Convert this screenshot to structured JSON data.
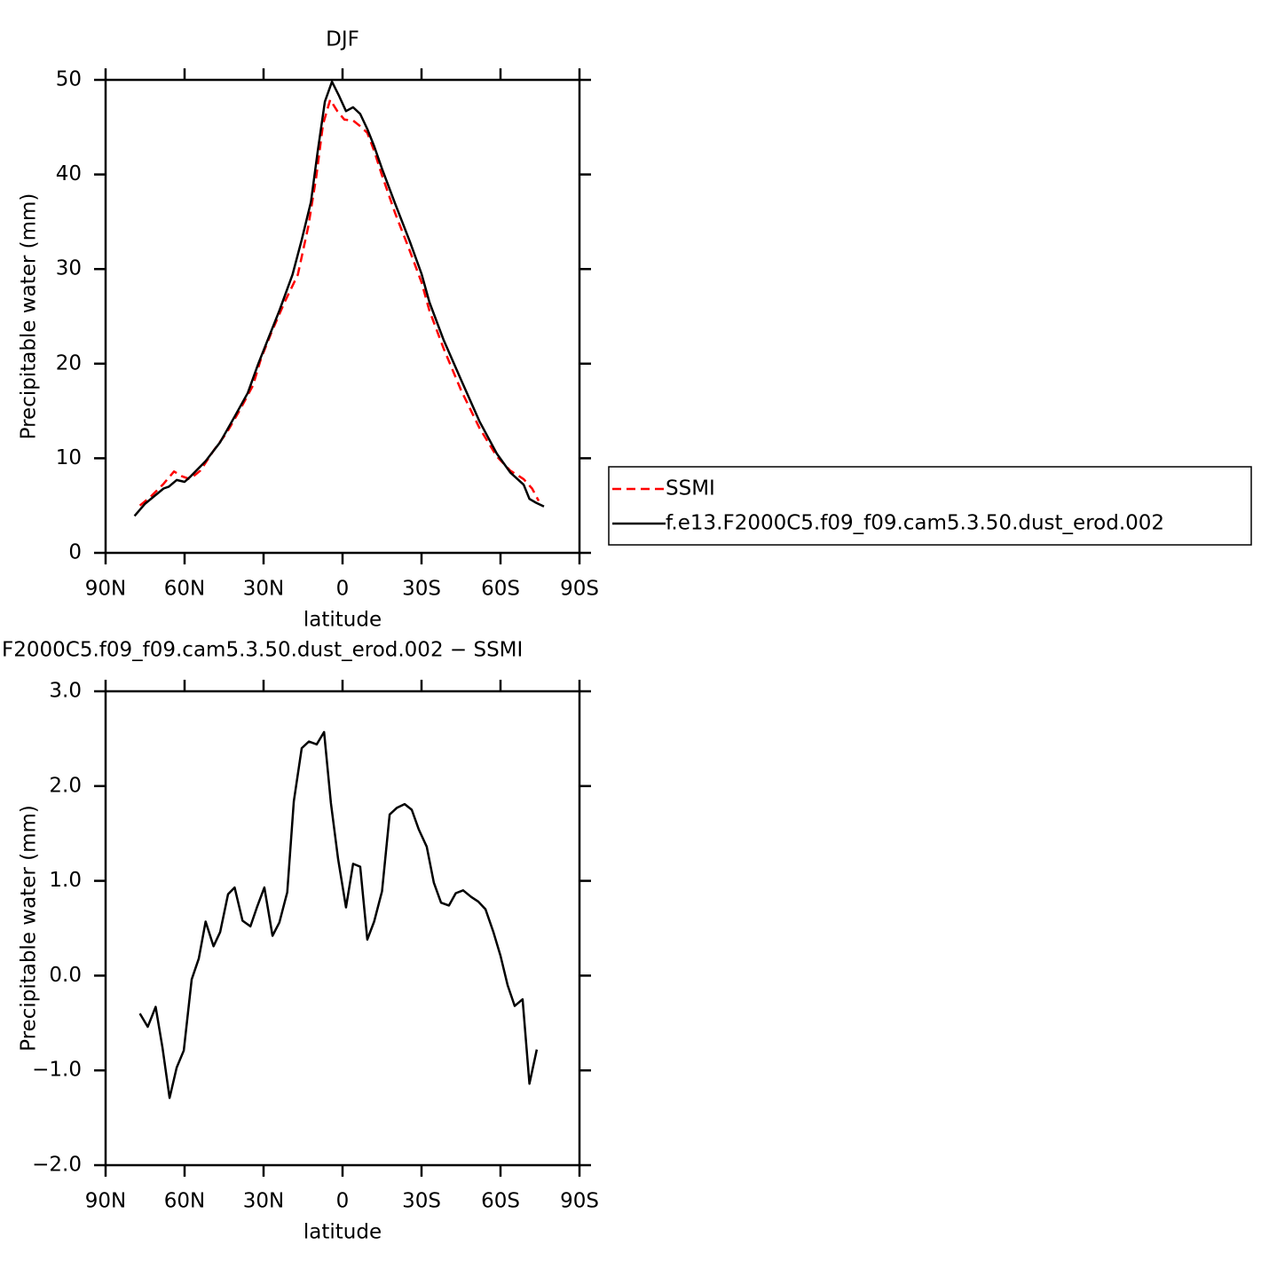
{
  "chart_data": [
    {
      "type": "line",
      "title": "DJF",
      "xlabel": "latitude",
      "ylabel": "Precipitable water (mm)",
      "xlim": [
        90,
        -90
      ],
      "xticks": [
        {
          "value": 90,
          "label": "90N"
        },
        {
          "value": 60,
          "label": "60N"
        },
        {
          "value": 30,
          "label": "30N"
        },
        0,
        {
          "value": -30,
          "label": "30S"
        },
        {
          "value": -60,
          "label": "60S"
        },
        {
          "value": -90,
          "label": "90S"
        }
      ],
      "ylim": [
        0,
        50
      ],
      "yticks": [
        0,
        10,
        20,
        30,
        40,
        50
      ],
      "legend": "right",
      "series": [
        {
          "name": "SSMI",
          "color": "#ff0000",
          "style": "dashed",
          "x": [
            77,
            73,
            68,
            64,
            61,
            58,
            54,
            49,
            44,
            39,
            34,
            31,
            27,
            22,
            17,
            13,
            10,
            7.4,
            4.7,
            2,
            -0.7,
            -4,
            -6.7,
            -9.4,
            -12,
            -15,
            -20,
            -25.6,
            -30,
            -33,
            -38.4,
            -45,
            -52,
            -58.6,
            -63.7,
            -68.8,
            -72,
            -74.5
          ],
          "values": [
            5.0,
            5.9,
            7.3,
            8.6,
            8.1,
            7.8,
            8.7,
            10.8,
            12.7,
            15.1,
            17.7,
            20.5,
            23.3,
            26.5,
            29.4,
            34.5,
            39.7,
            45.3,
            47.9,
            46.7,
            45.8,
            45.7,
            45.1,
            44.4,
            42.5,
            39.9,
            35.9,
            31.9,
            28.6,
            25.6,
            21.6,
            17.2,
            13.2,
            10.2,
            8.7,
            7.8,
            6.8,
            5.5
          ]
        },
        {
          "name": "f.e13.F2000C5.f09_f09.cam5.3.50.dust_erod.002",
          "color": "#000000",
          "style": "solid",
          "x": [
            79,
            75,
            68,
            66,
            63,
            60,
            58,
            52,
            46.5,
            41,
            36,
            32,
            28,
            24,
            19,
            15.5,
            12,
            9.4,
            6.7,
            4,
            1.3,
            -1.3,
            -4,
            -6.7,
            -9.4,
            -12,
            -15,
            -20,
            -25.6,
            -30,
            -33,
            -38.4,
            -45,
            -52,
            -58.6,
            -63.7,
            -68.8,
            -71,
            -73.5,
            -76.5
          ],
          "values": [
            3.9,
            5.2,
            6.8,
            7.0,
            7.7,
            7.5,
            8.0,
            9.7,
            11.7,
            14.4,
            16.9,
            20.0,
            22.8,
            25.6,
            29.4,
            33.1,
            37.1,
            42.5,
            47.7,
            49.8,
            48.3,
            46.7,
            47.1,
            46.4,
            44.8,
            43.0,
            40.6,
            36.9,
            32.9,
            29.5,
            26.5,
            22.5,
            18.3,
            13.9,
            10.5,
            8.5,
            7.2,
            5.7,
            5.3,
            4.9
          ]
        }
      ]
    },
    {
      "type": "line",
      "title": "F2000C5.f09_f09.cam5.3.50.dust_erod.002 − SSMI",
      "xlabel": "latitude",
      "ylabel": "Precipitable water (mm)",
      "xlim": [
        90,
        -90
      ],
      "xticks": [
        {
          "value": 90,
          "label": "90N"
        },
        {
          "value": 60,
          "label": "60N"
        },
        {
          "value": 30,
          "label": "30N"
        },
        0,
        {
          "value": -30,
          "label": "30S"
        },
        {
          "value": -60,
          "label": "60S"
        },
        {
          "value": -90,
          "label": "90S"
        }
      ],
      "ylim": [
        -2,
        3
      ],
      "yticks": [
        {
          "value": -2,
          "label": "−2.0"
        },
        {
          "value": -1,
          "label": "−1.0"
        },
        {
          "value": 0,
          "label": "0.0"
        },
        {
          "value": 1,
          "label": "1.0"
        },
        {
          "value": 2,
          "label": "2.0"
        },
        {
          "value": 3,
          "label": "3.0"
        }
      ],
      "series": [
        {
          "color": "#000000",
          "style": "solid",
          "x": [
            77,
            74,
            71,
            68.4,
            65.7,
            63,
            60.3,
            57.3,
            54.6,
            52,
            49,
            46.5,
            43.5,
            41,
            38,
            35,
            32.4,
            29.7,
            26.6,
            24,
            21,
            18.5,
            15.5,
            12.8,
            9.8,
            7,
            4.4,
            1.7,
            -1.3,
            -4,
            -6.7,
            -9.4,
            -12,
            -15,
            -17.9,
            -20.6,
            -23.6,
            -26.3,
            -29,
            -32,
            -34.7,
            -37.4,
            -40.4,
            -43,
            -45.8,
            -48.9,
            -51.6,
            -54.3,
            -57.3,
            -60,
            -62.7,
            -65.4,
            -68.4,
            -71,
            -73.8
          ],
          "values": [
            -0.4,
            -0.54,
            -0.33,
            -0.76,
            -1.29,
            -0.97,
            -0.79,
            -0.04,
            0.18,
            0.57,
            0.31,
            0.46,
            0.86,
            0.93,
            0.58,
            0.52,
            0.73,
            0.93,
            0.42,
            0.56,
            0.88,
            1.84,
            2.4,
            2.47,
            2.44,
            2.57,
            1.82,
            1.23,
            0.72,
            1.18,
            1.15,
            0.38,
            0.57,
            0.89,
            1.7,
            1.77,
            1.81,
            1.75,
            1.54,
            1.36,
            0.98,
            0.77,
            0.74,
            0.87,
            0.9,
            0.83,
            0.78,
            0.7,
            0.46,
            0.21,
            -0.1,
            -0.32,
            -0.25,
            -1.14,
            -0.78
          ]
        }
      ]
    }
  ]
}
